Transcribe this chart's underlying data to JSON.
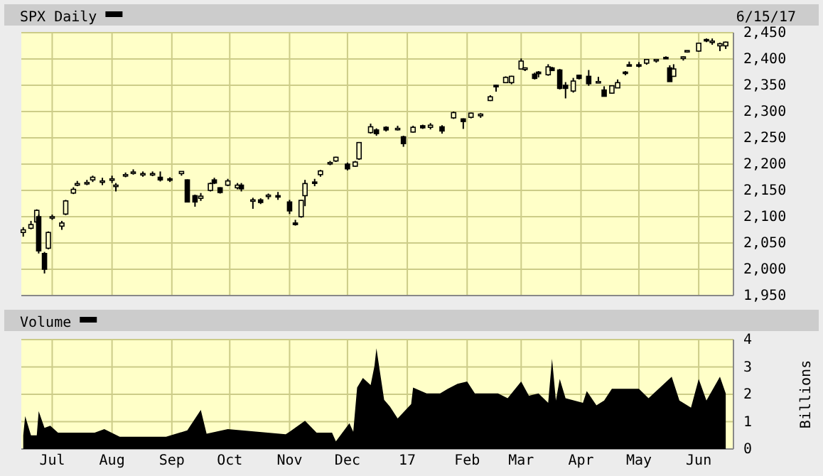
{
  "chart_data": [
    {
      "type": "candlestick",
      "title": "SPX Daily",
      "color": "#000000",
      "annotations": [
        "6/15/17"
      ],
      "grid": true,
      "tick_labels": "y",
      "xlim": [
        "2016-06-15",
        "2017-06-19"
      ],
      "xticks": [
        {
          "value": "2016-07-01",
          "label": null
        },
        {
          "value": "2016-08-01",
          "label": null
        },
        {
          "value": "2016-09-01",
          "label": null
        },
        {
          "value": "2016-10-01",
          "label": null
        },
        {
          "value": "2016-11-01",
          "label": null
        },
        {
          "value": "2016-12-01",
          "label": null
        },
        {
          "value": "2017-01-01",
          "label": null
        },
        {
          "value": "2017-02-01",
          "label": null
        },
        {
          "value": "2017-03-01",
          "label": null
        },
        {
          "value": "2017-04-01",
          "label": null
        },
        {
          "value": "2017-05-01",
          "label": null
        },
        {
          "value": "2017-06-01",
          "label": null
        }
      ],
      "ylim": [
        1950,
        2450
      ],
      "yticks": [
        {
          "value": 1950,
          "label": "1,950"
        },
        {
          "value": 2000,
          "label": "2,000"
        },
        {
          "value": 2050,
          "label": "2,050"
        },
        {
          "value": 2100,
          "label": "2,100"
        },
        {
          "value": 2150,
          "label": "2,150"
        },
        {
          "value": 2200,
          "label": "2,200"
        },
        {
          "value": 2250,
          "label": "2,250"
        },
        {
          "value": 2300,
          "label": "2,300"
        },
        {
          "value": 2350,
          "label": "2,350"
        },
        {
          "value": 2400,
          "label": "2,400"
        },
        {
          "value": 2450,
          "label": "2,450"
        }
      ],
      "x": [
        "2016-06-16",
        "2016-06-20",
        "2016-06-23",
        "2016-06-24",
        "2016-06-27",
        "2016-06-29",
        "2016-07-01",
        "2016-07-06",
        "2016-07-08",
        "2016-07-12",
        "2016-07-14",
        "2016-07-19",
        "2016-07-22",
        "2016-07-27",
        "2016-08-01",
        "2016-08-03",
        "2016-08-08",
        "2016-08-12",
        "2016-08-17",
        "2016-08-22",
        "2016-08-26",
        "2016-08-31",
        "2016-09-06",
        "2016-09-09",
        "2016-09-13",
        "2016-09-16",
        "2016-09-21",
        "2016-09-23",
        "2016-09-26",
        "2016-09-30",
        "2016-10-05",
        "2016-10-07",
        "2016-10-13",
        "2016-10-17",
        "2016-10-21",
        "2016-10-26",
        "2016-11-01",
        "2016-11-04",
        "2016-11-07",
        "2016-11-09",
        "2016-11-14",
        "2016-11-17",
        "2016-11-22",
        "2016-11-25",
        "2016-12-01",
        "2016-12-05",
        "2016-12-07",
        "2016-12-13",
        "2016-12-16",
        "2016-12-21",
        "2016-12-27",
        "2016-12-30",
        "2017-01-04",
        "2017-01-09",
        "2017-01-13",
        "2017-01-19",
        "2017-01-25",
        "2017-01-30",
        "2017-02-03",
        "2017-02-08",
        "2017-02-13",
        "2017-02-16",
        "2017-02-21",
        "2017-02-24",
        "2017-03-01",
        "2017-03-03",
        "2017-03-08",
        "2017-03-10",
        "2017-03-15",
        "2017-03-17",
        "2017-03-21",
        "2017-03-24",
        "2017-03-28",
        "2017-03-31",
        "2017-04-05",
        "2017-04-10",
        "2017-04-13",
        "2017-04-17",
        "2017-04-20",
        "2017-04-24",
        "2017-04-26",
        "2017-05-01",
        "2017-05-05",
        "2017-05-10",
        "2017-05-15",
        "2017-05-17",
        "2017-05-19",
        "2017-05-24",
        "2017-05-26",
        "2017-06-01",
        "2017-06-05",
        "2017-06-08",
        "2017-06-12",
        "2017-06-15"
      ],
      "ohlc": [
        [
          2070,
          2080,
          2062,
          2075
        ],
        [
          2078,
          2092,
          2076,
          2085
        ],
        [
          2090,
          2114,
          2088,
          2112
        ],
        [
          2100,
          2104,
          2030,
          2035
        ],
        [
          2030,
          2033,
          1992,
          2000
        ],
        [
          2040,
          2072,
          2038,
          2070
        ],
        [
          2098,
          2104,
          2094,
          2100
        ],
        [
          2082,
          2092,
          2075,
          2088
        ],
        [
          2105,
          2132,
          2103,
          2130
        ],
        [
          2145,
          2156,
          2143,
          2152
        ],
        [
          2160,
          2168,
          2158,
          2163
        ],
        [
          2163,
          2170,
          2160,
          2165
        ],
        [
          2170,
          2178,
          2166,
          2175
        ],
        [
          2168,
          2174,
          2160,
          2168
        ],
        [
          2172,
          2178,
          2164,
          2172
        ],
        [
          2158,
          2164,
          2148,
          2160
        ],
        [
          2178,
          2184,
          2175,
          2180
        ],
        [
          2184,
          2190,
          2180,
          2185
        ],
        [
          2180,
          2186,
          2176,
          2182
        ],
        [
          2182,
          2186,
          2177,
          2182
        ],
        [
          2175,
          2186,
          2167,
          2170
        ],
        [
          2172,
          2175,
          2166,
          2171
        ],
        [
          2182,
          2186,
          2178,
          2186
        ],
        [
          2170,
          2171,
          2127,
          2128
        ],
        [
          2140,
          2142,
          2119,
          2128
        ],
        [
          2135,
          2145,
          2130,
          2139
        ],
        [
          2150,
          2165,
          2148,
          2163
        ],
        [
          2170,
          2174,
          2162,
          2164
        ],
        [
          2155,
          2156,
          2144,
          2146
        ],
        [
          2160,
          2172,
          2158,
          2168
        ],
        [
          2155,
          2164,
          2152,
          2160
        ],
        [
          2160,
          2164,
          2148,
          2153
        ],
        [
          2132,
          2136,
          2115,
          2132
        ],
        [
          2132,
          2135,
          2124,
          2127
        ],
        [
          2140,
          2144,
          2133,
          2141
        ],
        [
          2140,
          2147,
          2132,
          2139
        ],
        [
          2128,
          2132,
          2105,
          2111
        ],
        [
          2088,
          2094,
          2083,
          2085
        ],
        [
          2100,
          2132,
          2098,
          2131
        ],
        [
          2140,
          2170,
          2120,
          2163
        ],
        [
          2166,
          2172,
          2158,
          2164
        ],
        [
          2180,
          2189,
          2176,
          2187
        ],
        [
          2201,
          2206,
          2198,
          2203
        ],
        [
          2206,
          2214,
          2204,
          2213
        ],
        [
          2200,
          2203,
          2188,
          2191
        ],
        [
          2196,
          2206,
          2195,
          2204
        ],
        [
          2210,
          2242,
          2208,
          2241
        ],
        [
          2260,
          2277,
          2258,
          2271
        ],
        [
          2265,
          2268,
          2254,
          2258
        ],
        [
          2270,
          2272,
          2262,
          2265
        ],
        [
          2266,
          2273,
          2264,
          2268
        ],
        [
          2252,
          2254,
          2233,
          2239
        ],
        [
          2261,
          2273,
          2260,
          2270
        ],
        [
          2273,
          2275,
          2267,
          2269
        ],
        [
          2270,
          2278,
          2266,
          2274
        ],
        [
          2271,
          2274,
          2258,
          2263
        ],
        [
          2288,
          2300,
          2286,
          2298
        ],
        [
          2286,
          2287,
          2267,
          2281
        ],
        [
          2289,
          2298,
          2287,
          2297
        ],
        [
          2292,
          2297,
          2288,
          2295
        ],
        [
          2321,
          2331,
          2320,
          2328
        ],
        [
          2350,
          2351,
          2338,
          2347
        ],
        [
          2355,
          2367,
          2354,
          2365
        ],
        [
          2355,
          2368,
          2352,
          2367
        ],
        [
          2381,
          2401,
          2380,
          2396
        ],
        [
          2380,
          2384,
          2377,
          2383
        ],
        [
          2371,
          2374,
          2361,
          2363
        ],
        [
          2375,
          2377,
          2365,
          2372
        ],
        [
          2370,
          2390,
          2368,
          2385
        ],
        [
          2383,
          2385,
          2377,
          2378
        ],
        [
          2379,
          2381,
          2342,
          2344
        ],
        [
          2350,
          2356,
          2325,
          2344
        ],
        [
          2339,
          2364,
          2336,
          2358
        ],
        [
          2369,
          2370,
          2361,
          2363
        ],
        [
          2367,
          2379,
          2349,
          2353
        ],
        [
          2357,
          2366,
          2354,
          2357
        ],
        [
          2341,
          2348,
          2329,
          2329
        ],
        [
          2335,
          2350,
          2334,
          2349
        ],
        [
          2345,
          2361,
          2345,
          2355
        ],
        [
          2375,
          2377,
          2369,
          2374
        ],
        [
          2389,
          2395,
          2386,
          2387
        ],
        [
          2389,
          2394,
          2384,
          2388
        ],
        [
          2392,
          2399,
          2389,
          2399
        ],
        [
          2397,
          2400,
          2393,
          2399
        ],
        [
          2403,
          2405,
          2401,
          2402
        ],
        [
          2383,
          2388,
          2357,
          2357
        ],
        [
          2367,
          2390,
          2366,
          2381
        ],
        [
          2401,
          2405,
          2397,
          2404
        ],
        [
          2414,
          2416,
          2412,
          2416
        ],
        [
          2415,
          2431,
          2414,
          2430
        ],
        [
          2437,
          2439,
          2432,
          2436
        ],
        [
          2434,
          2439,
          2427,
          2434
        ],
        [
          2425,
          2431,
          2415,
          2429
        ],
        [
          2425,
          2433,
          2419,
          2432
        ]
      ]
    },
    {
      "type": "area",
      "title": "Volume",
      "ylabel": "Billions",
      "color": "#000000",
      "grid": true,
      "xlim": [
        "2016-06-15",
        "2017-06-19"
      ],
      "xticks": [
        {
          "value": "2016-07-01",
          "label": "Jul"
        },
        {
          "value": "2016-08-01",
          "label": "Aug"
        },
        {
          "value": "2016-09-01",
          "label": "Sep"
        },
        {
          "value": "2016-10-01",
          "label": "Oct"
        },
        {
          "value": "2016-11-01",
          "label": "Nov"
        },
        {
          "value": "2016-12-01",
          "label": "Dec"
        },
        {
          "value": "2017-01-01",
          "label": "17"
        },
        {
          "value": "2017-02-01",
          "label": "Feb"
        },
        {
          "value": "2017-03-01",
          "label": "Mar"
        },
        {
          "value": "2017-04-01",
          "label": "Apr"
        },
        {
          "value": "2017-05-01",
          "label": "May"
        },
        {
          "value": "2017-06-01",
          "label": "Jun"
        }
      ],
      "ylim": [
        0,
        4
      ],
      "yticks": [
        0,
        1,
        2,
        3,
        4
      ],
      "x": [
        "2016-06-16",
        "2016-06-17",
        "2016-06-20",
        "2016-06-23",
        "2016-06-24",
        "2016-06-27",
        "2016-06-30",
        "2016-07-04",
        "2016-07-23",
        "2016-07-28",
        "2016-08-05",
        "2016-08-29",
        "2016-09-09",
        "2016-09-16",
        "2016-09-19",
        "2016-09-30",
        "2016-10-30",
        "2016-11-01",
        "2016-11-09",
        "2016-11-15",
        "2016-11-23",
        "2016-11-25",
        "2016-12-02",
        "2016-12-04",
        "2016-12-06",
        "2016-12-09",
        "2016-12-13",
        "2016-12-15",
        "2016-12-16",
        "2016-12-20",
        "2016-12-23",
        "2016-12-27",
        "2017-01-03",
        "2017-01-04",
        "2017-01-11",
        "2017-01-18",
        "2017-01-22",
        "2017-01-27",
        "2017-02-01",
        "2017-02-05",
        "2017-02-17",
        "2017-02-22",
        "2017-03-01",
        "2017-03-05",
        "2017-03-10",
        "2017-03-15",
        "2017-03-17",
        "2017-03-19",
        "2017-03-21",
        "2017-03-24",
        "2017-04-02",
        "2017-04-04",
        "2017-04-09",
        "2017-04-13",
        "2017-04-17",
        "2017-05-01",
        "2017-05-06",
        "2017-05-18",
        "2017-05-22",
        "2017-05-28",
        "2017-06-01",
        "2017-06-05",
        "2017-06-12",
        "2017-06-15"
      ],
      "values": [
        0.5,
        1.2,
        0.5,
        0.5,
        1.38,
        0.77,
        0.85,
        0.6,
        0.6,
        0.73,
        0.45,
        0.45,
        0.68,
        1.43,
        0.56,
        0.73,
        0.54,
        0.63,
        1.03,
        0.6,
        0.6,
        0.28,
        0.94,
        0.63,
        2.25,
        2.6,
        2.34,
        3.04,
        3.68,
        1.8,
        1.55,
        1.12,
        1.64,
        2.25,
        2.03,
        2.03,
        2.2,
        2.38,
        2.47,
        2.03,
        2.03,
        1.86,
        2.47,
        1.95,
        2.03,
        1.69,
        3.3,
        1.77,
        2.56,
        1.86,
        1.69,
        2.12,
        1.6,
        1.77,
        2.2,
        2.2,
        1.86,
        2.64,
        1.77,
        1.51,
        2.56,
        1.77,
        2.64,
        2.03
      ]
    }
  ]
}
